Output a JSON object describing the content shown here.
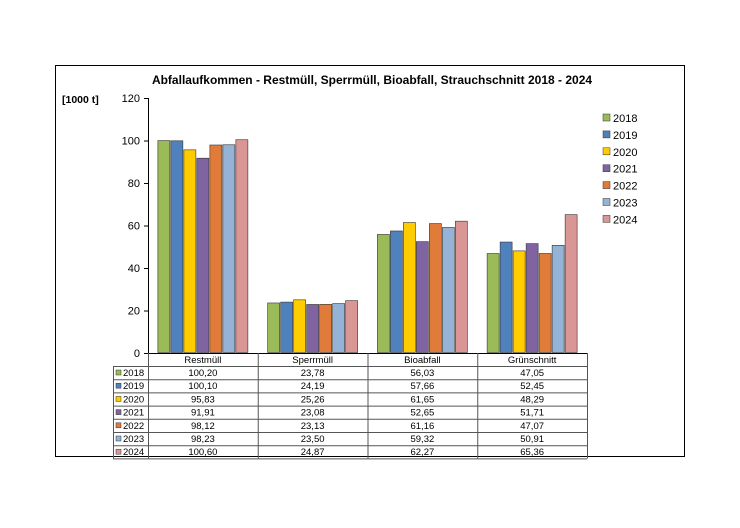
{
  "chart_data": {
    "type": "bar",
    "title": "Abfallaufkommen - Restmüll, Sperrmüll, Bioabfall, Strauchschnitt 2018 - 2024",
    "ylabel": "[1000 t]",
    "xlabel": "",
    "ylim": [
      0,
      120
    ],
    "yticks": [
      0,
      20,
      40,
      60,
      80,
      100,
      120
    ],
    "grid": false,
    "legend_position": "right",
    "categories": [
      "Restmüll",
      "Sperrmüll",
      "Bioabfall",
      "Grünschnitt"
    ],
    "series": [
      {
        "name": "2018",
        "color": "#9bbb59",
        "values": [
          100.2,
          23.78,
          56.03,
          47.05
        ],
        "labels": [
          "100,20",
          "23,78",
          "56,03",
          "47,05"
        ]
      },
      {
        "name": "2019",
        "color": "#4f81bd",
        "values": [
          100.1,
          24.19,
          57.66,
          52.45
        ],
        "labels": [
          "100,10",
          "24,19",
          "57,66",
          "52,45"
        ]
      },
      {
        "name": "2020",
        "color": "#ffcc00",
        "values": [
          95.83,
          25.26,
          61.65,
          48.29
        ],
        "labels": [
          "95,83",
          "25,26",
          "61,65",
          "48,29"
        ]
      },
      {
        "name": "2021",
        "color": "#8064a2",
        "values": [
          91.91,
          23.08,
          52.65,
          51.71
        ],
        "labels": [
          "91,91",
          "23,08",
          "52,65",
          "51,71"
        ]
      },
      {
        "name": "2022",
        "color": "#e07b39",
        "values": [
          98.12,
          23.13,
          61.16,
          47.07
        ],
        "labels": [
          "98,12",
          "23,13",
          "61,16",
          "47,07"
        ]
      },
      {
        "name": "2023",
        "color": "#95b3d7",
        "values": [
          98.23,
          23.5,
          59.32,
          50.91
        ],
        "labels": [
          "98,23",
          "23,50",
          "59,32",
          "50,91"
        ]
      },
      {
        "name": "2024",
        "color": "#d99694",
        "values": [
          100.6,
          24.87,
          62.27,
          65.36
        ],
        "labels": [
          "100,60",
          "24,87",
          "62,27",
          "65,36"
        ]
      }
    ]
  }
}
